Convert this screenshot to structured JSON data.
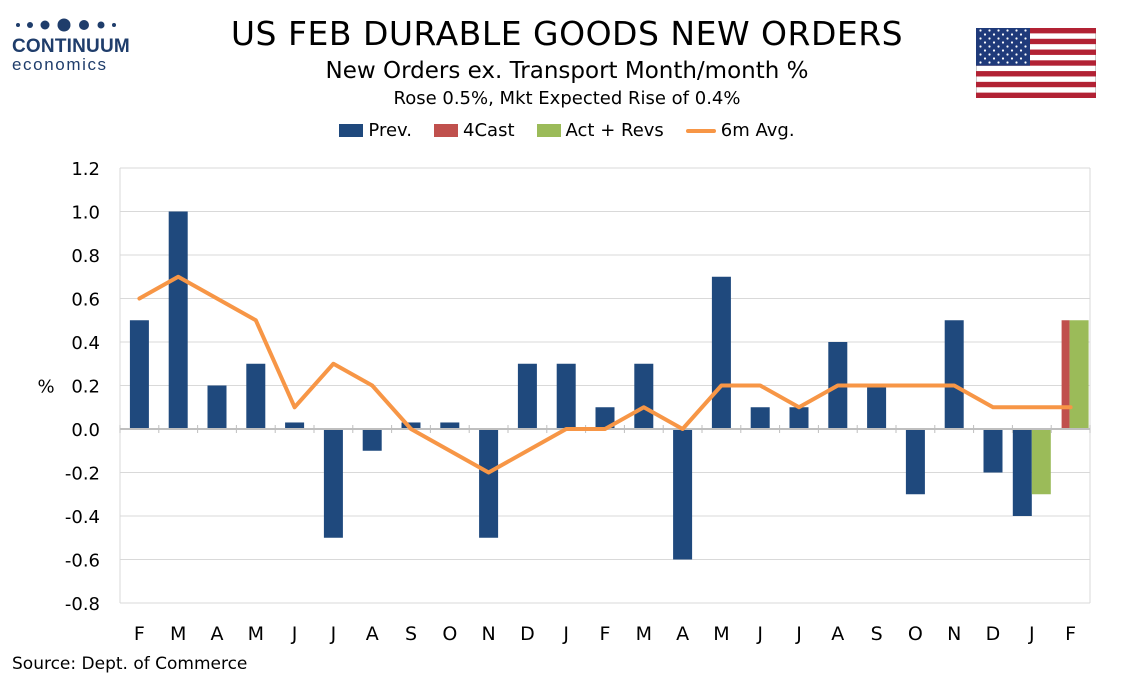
{
  "header": {
    "title": "US FEB DURABLE GOODS NEW ORDERS",
    "subtitle": "New Orders ex. Transport Month/month %",
    "subtitle2": "Rose 0.5%, Mkt Expected Rise of 0.4%"
  },
  "logo": {
    "name": "CONTINUUM",
    "sub": "economics",
    "color": "#1f3d6b"
  },
  "flag": {
    "icon": "us-flag-icon"
  },
  "source": "Source: Dept. of Commerce",
  "chart_data": {
    "type": "bar",
    "categories": [
      "F",
      "M",
      "A",
      "M",
      "J",
      "J",
      "A",
      "S",
      "O",
      "N",
      "D",
      "J",
      "F",
      "M",
      "A",
      "M",
      "J",
      "J",
      "A",
      "S",
      "O",
      "N",
      "D",
      "J",
      "F"
    ],
    "ylabel": "%",
    "ylim": [
      -0.8,
      1.2
    ],
    "yticks": [
      "1.2",
      "1.0",
      "0.8",
      "0.6",
      "0.4",
      "0.2",
      "0.0",
      "-0.2",
      "-0.4",
      "-0.6",
      "-0.8"
    ],
    "ytick_values": [
      1.2,
      1.0,
      0.8,
      0.6,
      0.4,
      0.2,
      0.0,
      -0.2,
      -0.4,
      -0.6,
      -0.8
    ],
    "grid": true,
    "legend_position": "top-center",
    "series": [
      {
        "name": "Prev.",
        "kind": "bar",
        "color": "#1f497d",
        "values": [
          0.5,
          1.0,
          0.2,
          0.3,
          0.03,
          -0.5,
          -0.1,
          0.03,
          0.03,
          -0.5,
          0.3,
          0.3,
          0.1,
          0.3,
          -0.6,
          0.7,
          0.1,
          0.1,
          0.4,
          0.2,
          -0.3,
          0.5,
          -0.2,
          -0.4,
          null
        ]
      },
      {
        "name": "4Cast",
        "kind": "bar",
        "color": "#c0504d",
        "values": [
          null,
          null,
          null,
          null,
          null,
          null,
          null,
          null,
          null,
          null,
          null,
          null,
          null,
          null,
          null,
          null,
          null,
          null,
          null,
          null,
          null,
          null,
          null,
          null,
          0.5
        ]
      },
      {
        "name": "Act + Revs",
        "kind": "bar",
        "color": "#9bbb59",
        "values": [
          null,
          null,
          null,
          null,
          null,
          null,
          null,
          null,
          null,
          null,
          null,
          null,
          null,
          null,
          null,
          null,
          null,
          null,
          null,
          null,
          null,
          null,
          null,
          -0.3,
          0.5
        ]
      },
      {
        "name": "6m Avg.",
        "kind": "line",
        "color": "#f79646",
        "values": [
          0.6,
          0.7,
          0.6,
          0.5,
          0.1,
          0.3,
          0.2,
          0.0,
          -0.1,
          -0.2,
          -0.1,
          0.0,
          0.0,
          0.1,
          0.0,
          0.2,
          0.2,
          0.1,
          0.2,
          0.2,
          0.2,
          0.2,
          0.1,
          0.1,
          0.1
        ]
      }
    ]
  }
}
